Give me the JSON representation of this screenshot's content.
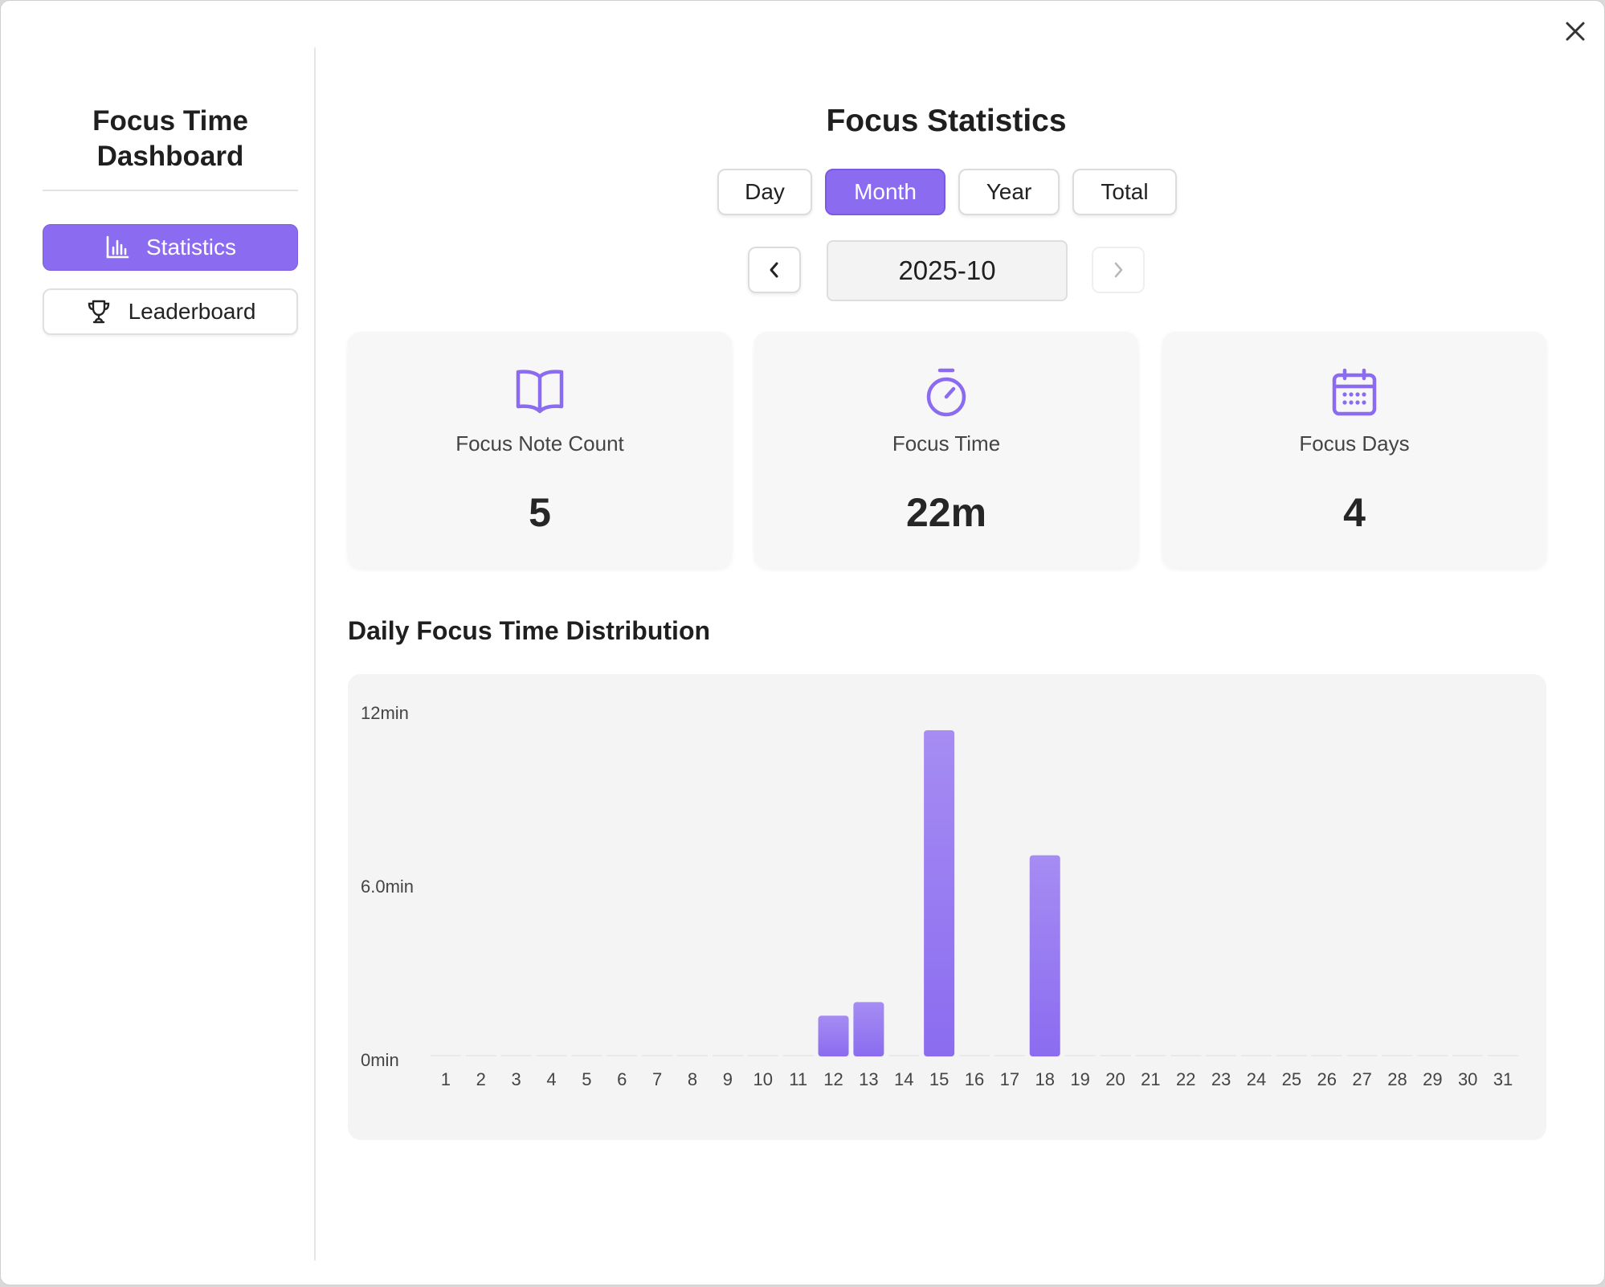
{
  "sidebar": {
    "title": "Focus Time Dashboard",
    "items": [
      {
        "label": "Statistics",
        "icon": "bar-chart-icon",
        "active": true
      },
      {
        "label": "Leaderboard",
        "icon": "trophy-icon",
        "active": false
      }
    ]
  },
  "header": {
    "title": "Focus Statistics",
    "range_tabs": [
      {
        "label": "Day",
        "active": false
      },
      {
        "label": "Month",
        "active": true
      },
      {
        "label": "Year",
        "active": false
      },
      {
        "label": "Total",
        "active": false
      }
    ],
    "period": "2025-10",
    "prev_enabled": true,
    "next_enabled": false
  },
  "cards": [
    {
      "icon": "book-icon",
      "label": "Focus Note Count",
      "value": "5"
    },
    {
      "icon": "stopwatch-icon",
      "label": "Focus Time",
      "value": "22m"
    },
    {
      "icon": "calendar-icon",
      "label": "Focus Days",
      "value": "4"
    }
  ],
  "chart_section": {
    "title": "Daily Focus Time Distribution"
  },
  "chart_data": {
    "type": "bar",
    "categories": [
      "1",
      "2",
      "3",
      "4",
      "5",
      "6",
      "7",
      "8",
      "9",
      "10",
      "11",
      "12",
      "13",
      "14",
      "15",
      "16",
      "17",
      "18",
      "19",
      "20",
      "21",
      "22",
      "23",
      "24",
      "25",
      "26",
      "27",
      "28",
      "29",
      "30",
      "31"
    ],
    "values": [
      0,
      0,
      0,
      0,
      0,
      0,
      0,
      0,
      0,
      0,
      0,
      1.5,
      2,
      0,
      12,
      0,
      0,
      7.4,
      0,
      0,
      0,
      0,
      0,
      0,
      0,
      0,
      0,
      0,
      0,
      0,
      0
    ],
    "y_ticks": [
      "0min",
      "6.0min",
      "12min"
    ],
    "ylim": [
      0,
      12.4
    ],
    "grid": false,
    "title": "",
    "xlabel": "",
    "ylabel": ""
  },
  "colors": {
    "accent": "#8b6cf0",
    "bar_top": "#a68cf3",
    "bar_bottom": "#8b6cf0"
  }
}
